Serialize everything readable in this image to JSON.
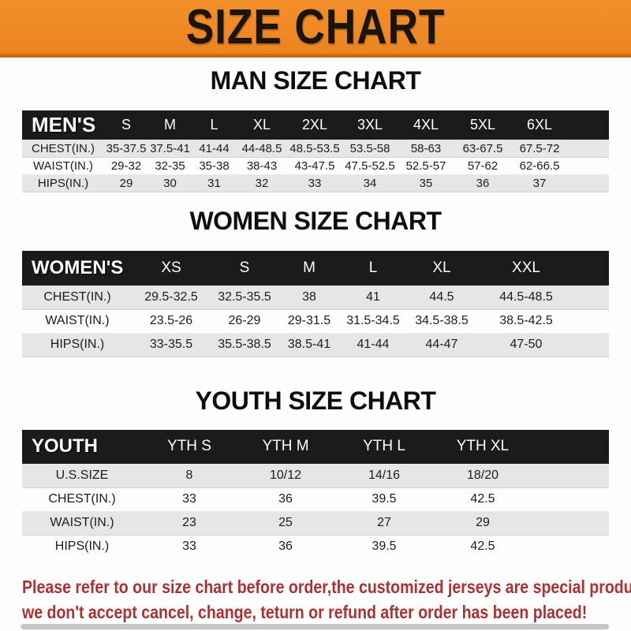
{
  "banner": {
    "title": "SIZE CHART"
  },
  "sections": {
    "men": {
      "heading": "MAN SIZE CHART",
      "table": {
        "header": [
          "MEN'S",
          "S",
          "M",
          "L",
          "XL",
          "2XL",
          "3XL",
          "4XL",
          "5XL",
          "6XL"
        ],
        "rows": [
          {
            "label": "CHEST(IN.)",
            "values": [
              "35-37.5",
              "37.5-41",
              "41-44",
              "44-48.5",
              "48.5-53.5",
              "53.5-58",
              "58-63",
              "63-67.5",
              "67.5-72"
            ]
          },
          {
            "label": "WAIST(IN.)",
            "values": [
              "29-32",
              "32-35",
              "35-38",
              "38-43",
              "43-47.5",
              "47.5-52.5",
              "52.5-57",
              "57-62",
              "62-66.5"
            ]
          },
          {
            "label": "HIPS(IN.)",
            "values": [
              "29",
              "30",
              "31",
              "32",
              "33",
              "34",
              "35",
              "36",
              "37"
            ]
          }
        ]
      }
    },
    "women": {
      "heading": "WOMEN SIZE CHART",
      "table": {
        "header": [
          "WOMEN'S",
          "XS",
          "S",
          "M",
          "L",
          "XL",
          "XXL"
        ],
        "rows": [
          {
            "label": "CHEST(IN.)",
            "values": [
              "29.5-32.5",
              "32.5-35.5",
              "38",
              "41",
              "44.5",
              "44.5-48.5"
            ]
          },
          {
            "label": "WAIST(IN.)",
            "values": [
              "23.5-26",
              "26-29",
              "29-31.5",
              "31.5-34.5",
              "34.5-38.5",
              "38.5-42.5"
            ]
          },
          {
            "label": "HIPS(IN.)",
            "values": [
              "33-35.5",
              "35.5-38.5",
              "38.5-41",
              "41-44",
              "44-47",
              "47-50"
            ]
          }
        ]
      }
    },
    "youth": {
      "heading": "YOUTH SIZE CHART",
      "table": {
        "header": [
          "YOUTH",
          "YTH S",
          "YTH M",
          "YTH L",
          "YTH XL"
        ],
        "rows": [
          {
            "label": "U.S.SIZE",
            "values": [
              "8",
              "10/12",
              "14/16",
              "18/20"
            ]
          },
          {
            "label": "CHEST(IN.)",
            "values": [
              "33",
              "36",
              "39.5",
              "42.5"
            ]
          },
          {
            "label": "WAIST(IN.)",
            "values": [
              "23",
              "25",
              "27",
              "29"
            ]
          },
          {
            "label": "HIPS(IN.)",
            "values": [
              "33",
              "36",
              "39.5",
              "42.5"
            ]
          }
        ]
      }
    }
  },
  "footer": {
    "line1": "Please refer to our size chart before order,the customized jerseys are special products,",
    "line2": "we don't accept cancel, change, teturn or refund after order has been placed!"
  },
  "colors": {
    "banner_bg": "#ee8722",
    "banner_shadow": "#c96e15",
    "header_bar": "#1b1b1b",
    "row_stripe": "#e6e6e6",
    "footer_text": "#a93232"
  }
}
